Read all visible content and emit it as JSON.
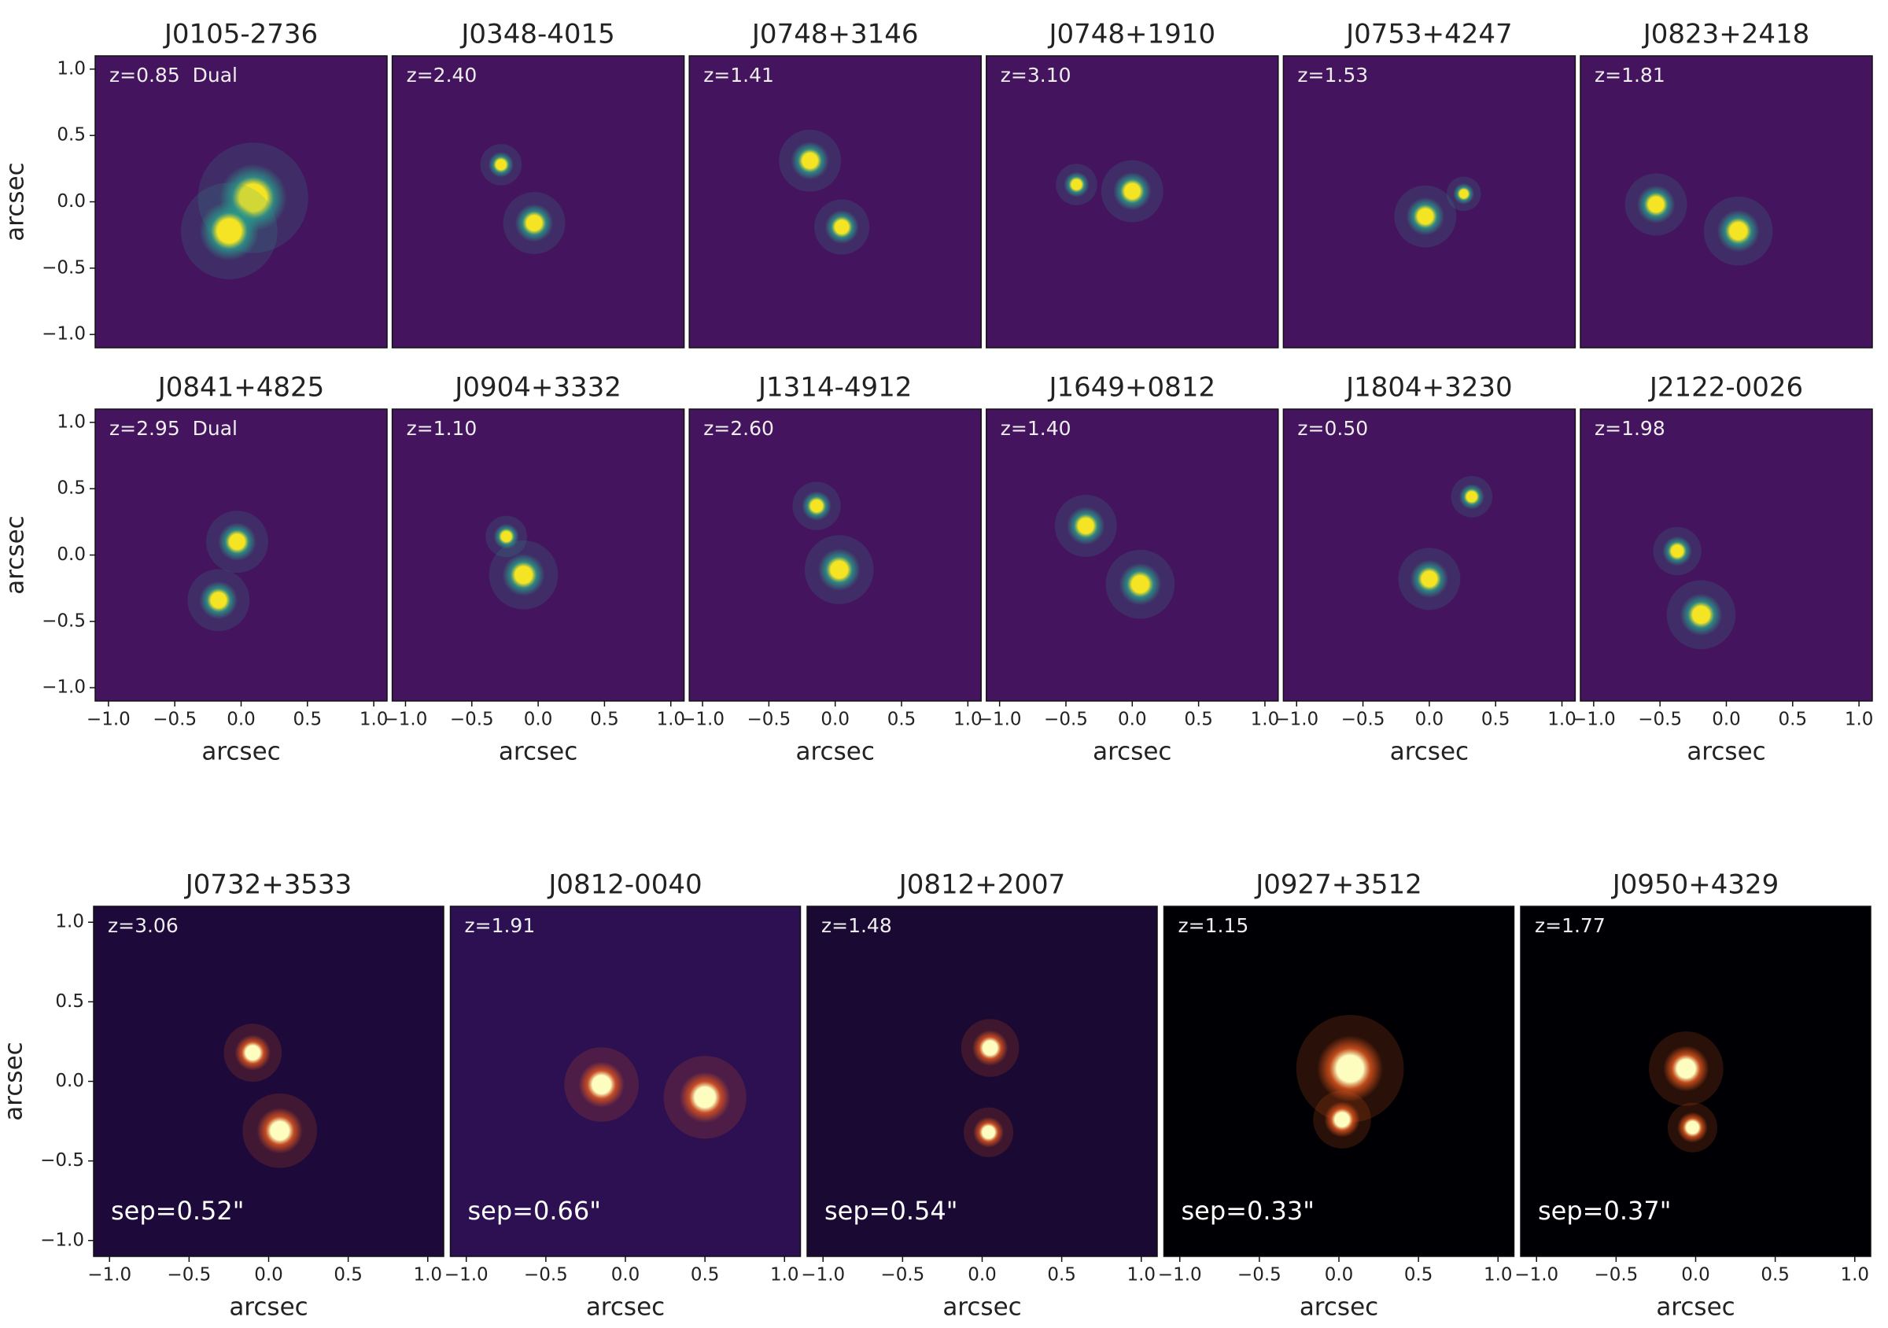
{
  "chart_data": [
    {
      "type": "scatter",
      "title": "J0105-2736",
      "note": "z=0.85  Dual",
      "x": [
        0.09,
        -0.09
      ],
      "values": [
        0.03,
        -0.22
      ],
      "sizes": [
        0.16,
        0.14
      ],
      "xlim": [
        -1.1,
        1.1
      ],
      "ylim": [
        -1.1,
        1.1
      ],
      "ylabel": "arcsec",
      "yticks": [
        {
          "value": -1,
          "label": "−1.0"
        },
        {
          "value": -0.5,
          "label": "−0.5"
        },
        {
          "value": 0,
          "label": "0.0"
        },
        0.5,
        {
          "value": 1,
          "label": "1.0"
        }
      ],
      "background": "#45145e",
      "color": "#f4e424",
      "halo": "#2a9a8a"
    },
    {
      "type": "scatter",
      "title": "J0348-4015",
      "note": "z=2.40",
      "x": [
        -0.28,
        -0.03
      ],
      "values": [
        0.28,
        -0.16
      ],
      "sizes": [
        0.06,
        0.09
      ],
      "xlim": [
        -1.1,
        1.1
      ],
      "ylim": [
        -1.1,
        1.1
      ],
      "background": "#45145e",
      "color": "#f4e424",
      "halo": "#2a9a8a"
    },
    {
      "type": "scatter",
      "title": "J0748+3146",
      "note": "z=1.41",
      "x": [
        -0.19,
        0.05
      ],
      "values": [
        0.31,
        -0.19
      ],
      "sizes": [
        0.09,
        0.08
      ],
      "xlim": [
        -1.1,
        1.1
      ],
      "ylim": [
        -1.1,
        1.1
      ],
      "background": "#45145e",
      "color": "#f4e424",
      "halo": "#2a9a8a"
    },
    {
      "type": "scatter",
      "title": "J0748+1910",
      "note": "z=3.10",
      "x": [
        -0.42,
        0.0
      ],
      "values": [
        0.13,
        0.08
      ],
      "sizes": [
        0.06,
        0.09
      ],
      "xlim": [
        -1.1,
        1.1
      ],
      "ylim": [
        -1.1,
        1.1
      ],
      "background": "#45145e",
      "color": "#f4e424",
      "halo": "#2a9a8a"
    },
    {
      "type": "scatter",
      "title": "J0753+4247",
      "note": "z=1.53",
      "x": [
        -0.03,
        0.26
      ],
      "values": [
        -0.11,
        0.06
      ],
      "sizes": [
        0.09,
        0.05
      ],
      "xlim": [
        -1.1,
        1.1
      ],
      "ylim": [
        -1.1,
        1.1
      ],
      "background": "#45145e",
      "color": "#f4e424",
      "halo": "#2a9a8a"
    },
    {
      "type": "scatter",
      "title": "J0823+2418",
      "note": "z=1.81",
      "x": [
        -0.53,
        0.09
      ],
      "values": [
        -0.02,
        -0.22
      ],
      "sizes": [
        0.09,
        0.1
      ],
      "xlim": [
        -1.1,
        1.1
      ],
      "ylim": [
        -1.1,
        1.1
      ],
      "background": "#45145e",
      "color": "#f4e424",
      "halo": "#2a9a8a"
    },
    {
      "type": "scatter",
      "title": "J0841+4825",
      "note": "z=2.95  Dual",
      "x": [
        -0.03,
        -0.17
      ],
      "values": [
        0.1,
        -0.34
      ],
      "sizes": [
        0.09,
        0.09
      ],
      "xlim": [
        -1.1,
        1.1
      ],
      "ylim": [
        -1.1,
        1.1
      ],
      "xlabel": "arcsec",
      "ylabel": "arcsec",
      "xticks": [
        {
          "value": -1,
          "label": "−1.0"
        },
        {
          "value": -0.5,
          "label": "−0.5"
        },
        {
          "value": 0,
          "label": "0.0"
        },
        0.5,
        {
          "value": 1,
          "label": "1.0"
        }
      ],
      "yticks": [
        {
          "value": -1,
          "label": "−1.0"
        },
        {
          "value": -0.5,
          "label": "−0.5"
        },
        {
          "value": 0,
          "label": "0.0"
        },
        0.5,
        {
          "value": 1,
          "label": "1.0"
        }
      ],
      "background": "#45145e",
      "color": "#f4e424",
      "halo": "#2a9a8a"
    },
    {
      "type": "scatter",
      "title": "J0904+3332",
      "note": "z=1.10",
      "x": [
        -0.24,
        -0.11
      ],
      "values": [
        0.14,
        -0.15
      ],
      "sizes": [
        0.06,
        0.1
      ],
      "xlim": [
        -1.1,
        1.1
      ],
      "ylim": [
        -1.1,
        1.1
      ],
      "xlabel": "arcsec",
      "xticks": [
        {
          "value": -1,
          "label": "−1.0"
        },
        {
          "value": -0.5,
          "label": "−0.5"
        },
        {
          "value": 0,
          "label": "0.0"
        },
        0.5,
        {
          "value": 1,
          "label": "1.0"
        }
      ],
      "background": "#45145e",
      "color": "#f4e424",
      "halo": "#2a9a8a"
    },
    {
      "type": "scatter",
      "title": "J1314-4912",
      "note": "z=2.60",
      "x": [
        -0.14,
        0.03
      ],
      "values": [
        0.37,
        -0.11
      ],
      "sizes": [
        0.07,
        0.1
      ],
      "xlim": [
        -1.1,
        1.1
      ],
      "ylim": [
        -1.1,
        1.1
      ],
      "xlabel": "arcsec",
      "xticks": [
        {
          "value": -1,
          "label": "−1.0"
        },
        {
          "value": -0.5,
          "label": "−0.5"
        },
        {
          "value": 0,
          "label": "0.0"
        },
        0.5,
        {
          "value": 1,
          "label": "1.0"
        }
      ],
      "background": "#45145e",
      "color": "#f4e424",
      "halo": "#2a9a8a"
    },
    {
      "type": "scatter",
      "title": "J1649+0812",
      "note": "z=1.40",
      "x": [
        -0.35,
        0.06
      ],
      "values": [
        0.22,
        -0.22
      ],
      "sizes": [
        0.09,
        0.1
      ],
      "xlim": [
        -1.1,
        1.1
      ],
      "ylim": [
        -1.1,
        1.1
      ],
      "xlabel": "arcsec",
      "xticks": [
        {
          "value": -1,
          "label": "−1.0"
        },
        {
          "value": -0.5,
          "label": "−0.5"
        },
        {
          "value": 0,
          "label": "0.0"
        },
        0.5,
        {
          "value": 1,
          "label": "1.0"
        }
      ],
      "background": "#45145e",
      "color": "#f4e424",
      "halo": "#2a9a8a"
    },
    {
      "type": "scatter",
      "title": "J1804+3230",
      "note": "z=0.50",
      "x": [
        0.32,
        0.0
      ],
      "values": [
        0.44,
        -0.18
      ],
      "sizes": [
        0.06,
        0.09
      ],
      "xlim": [
        -1.1,
        1.1
      ],
      "ylim": [
        -1.1,
        1.1
      ],
      "xlabel": "arcsec",
      "xticks": [
        {
          "value": -1,
          "label": "−1.0"
        },
        {
          "value": -0.5,
          "label": "−0.5"
        },
        {
          "value": 0,
          "label": "0.0"
        },
        0.5,
        {
          "value": 1,
          "label": "1.0"
        }
      ],
      "background": "#45145e",
      "color": "#f4e424",
      "halo": "#2a9a8a"
    },
    {
      "type": "scatter",
      "title": "J2122-0026",
      "note": "z=1.98",
      "x": [
        -0.37,
        -0.19
      ],
      "values": [
        0.03,
        -0.45
      ],
      "sizes": [
        0.07,
        0.1
      ],
      "xlim": [
        -1.1,
        1.1
      ],
      "ylim": [
        -1.1,
        1.1
      ],
      "xlabel": "arcsec",
      "xticks": [
        {
          "value": -1,
          "label": "−1.0"
        },
        {
          "value": -0.5,
          "label": "−0.5"
        },
        {
          "value": 0,
          "label": "0.0"
        },
        0.5,
        {
          "value": 1,
          "label": "1.0"
        }
      ],
      "background": "#45145e",
      "color": "#f4e424",
      "halo": "#2a9a8a"
    },
    {
      "type": "scatter",
      "title": "J0732+3533",
      "note": "z=3.06",
      "sep": "sep=0.52\"",
      "x": [
        -0.1,
        0.07
      ],
      "values": [
        0.18,
        -0.31
      ],
      "sizes": [
        0.07,
        0.09
      ],
      "xlim": [
        -1.1,
        1.1
      ],
      "ylim": [
        -1.1,
        1.1
      ],
      "xlabel": "arcsec",
      "ylabel": "arcsec",
      "xticks": [
        {
          "value": -1,
          "label": "−1.0"
        },
        {
          "value": -0.5,
          "label": "−0.5"
        },
        {
          "value": 0,
          "label": "0.0"
        },
        0.5,
        {
          "value": 1,
          "label": "1.0"
        }
      ],
      "yticks": [
        {
          "value": -1,
          "label": "−1.0"
        },
        {
          "value": -0.5,
          "label": "−0.5"
        },
        {
          "value": 0,
          "label": "0.0"
        },
        0.5,
        {
          "value": 1,
          "label": "1.0"
        }
      ],
      "background": "#1e0a3a",
      "color": "#fcfdbf",
      "halo": "#e2571e"
    },
    {
      "type": "scatter",
      "title": "J0812-0040",
      "note": "z=1.91",
      "sep": "sep=0.66\"",
      "x": [
        -0.15,
        0.5
      ],
      "values": [
        -0.02,
        -0.1
      ],
      "sizes": [
        0.09,
        0.1
      ],
      "xlim": [
        -1.1,
        1.1
      ],
      "ylim": [
        -1.1,
        1.1
      ],
      "xlabel": "arcsec",
      "xticks": [
        {
          "value": -1,
          "label": "−1.0"
        },
        {
          "value": -0.5,
          "label": "−0.5"
        },
        {
          "value": 0,
          "label": "0.0"
        },
        0.5,
        {
          "value": 1,
          "label": "1.0"
        }
      ],
      "background": "#2c1052",
      "color": "#fcfdbf",
      "halo": "#e2571e"
    },
    {
      "type": "scatter",
      "title": "J0812+2007",
      "note": "z=1.48",
      "sep": "sep=0.54\"",
      "x": [
        0.05,
        0.04
      ],
      "values": [
        0.21,
        -0.32
      ],
      "sizes": [
        0.07,
        0.06
      ],
      "xlim": [
        -1.1,
        1.1
      ],
      "ylim": [
        -1.1,
        1.1
      ],
      "xlabel": "arcsec",
      "xticks": [
        {
          "value": -1,
          "label": "−1.0"
        },
        {
          "value": -0.5,
          "label": "−0.5"
        },
        {
          "value": 0,
          "label": "0.0"
        },
        0.5,
        {
          "value": 1,
          "label": "1.0"
        }
      ],
      "background": "#1a0932",
      "color": "#fcfdbf",
      "halo": "#e2571e"
    },
    {
      "type": "scatter",
      "title": "J0927+3512",
      "note": "z=1.15",
      "sep": "sep=0.33\"",
      "x": [
        0.07,
        0.02
      ],
      "values": [
        0.08,
        -0.24
      ],
      "sizes": [
        0.13,
        0.07
      ],
      "xlim": [
        -1.1,
        1.1
      ],
      "ylim": [
        -1.1,
        1.1
      ],
      "xlabel": "arcsec",
      "xticks": [
        {
          "value": -1,
          "label": "−1.0"
        },
        {
          "value": -0.5,
          "label": "−0.5"
        },
        {
          "value": 0,
          "label": "0.0"
        },
        0.5,
        {
          "value": 1,
          "label": "1.0"
        }
      ],
      "background": "#000004",
      "color": "#fcfdbf",
      "halo": "#e2571e"
    },
    {
      "type": "scatter",
      "title": "J0950+4329",
      "note": "z=1.77",
      "sep": "sep=0.37\"",
      "x": [
        -0.06,
        -0.02
      ],
      "values": [
        0.08,
        -0.29
      ],
      "sizes": [
        0.09,
        0.06
      ],
      "xlim": [
        -1.1,
        1.1
      ],
      "ylim": [
        -1.1,
        1.1
      ],
      "xlabel": "arcsec",
      "xticks": [
        {
          "value": -1,
          "label": "−1.0"
        },
        {
          "value": -0.5,
          "label": "−0.5"
        },
        {
          "value": 0,
          "label": "0.0"
        },
        0.5,
        {
          "value": 1,
          "label": "1.0"
        }
      ],
      "background": "#000004",
      "color": "#fcfdbf",
      "halo": "#e2571e"
    }
  ]
}
